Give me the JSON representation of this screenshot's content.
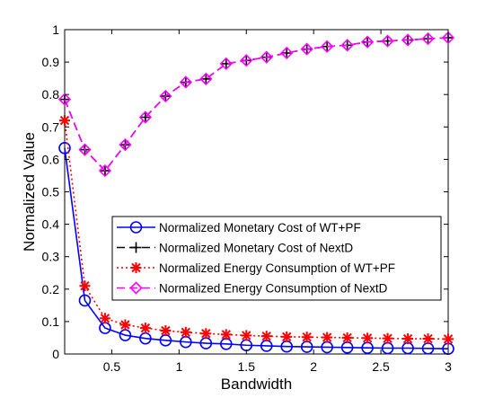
{
  "chart_data": {
    "type": "line",
    "xlabel": "Bandwidth",
    "ylabel": "Normalized Value",
    "xlim": [
      0.15,
      3
    ],
    "ylim": [
      0,
      1
    ],
    "xticks": [
      0.5,
      1,
      1.5,
      2,
      2.5,
      3
    ],
    "xtick_labels": [
      "0.5",
      "1",
      "1.5",
      "2",
      "2.5",
      "3"
    ],
    "yticks": [
      0,
      0.1,
      0.2,
      0.3,
      0.4,
      0.5,
      0.6,
      0.7,
      0.8,
      0.9,
      1
    ],
    "ytick_labels": [
      "0",
      "0.1",
      "0.2",
      "0.3",
      "0.4",
      "0.5",
      "0.6",
      "0.7",
      "0.8",
      "0.9",
      "1"
    ],
    "grid": false,
    "legend_position": "center-right",
    "x": [
      0.15,
      0.3,
      0.45,
      0.6,
      0.75,
      0.9,
      1.05,
      1.2,
      1.35,
      1.5,
      1.65,
      1.8,
      1.95,
      2.1,
      2.25,
      2.4,
      2.55,
      2.7,
      2.85,
      3.0
    ],
    "series": [
      {
        "name": "Normalized Monetary Cost of WT+PF",
        "color": "#0000ff",
        "line": "solid",
        "marker": "circle",
        "values": [
          0.635,
          0.165,
          0.08,
          0.058,
          0.048,
          0.042,
          0.037,
          0.033,
          0.031,
          0.027,
          0.025,
          0.023,
          0.022,
          0.021,
          0.02,
          0.019,
          0.018,
          0.018,
          0.017,
          0.016
        ]
      },
      {
        "name": "Normalized Monetary Cost of NextD",
        "color": "#000000",
        "line": "dashed",
        "marker": "plus",
        "values": [
          0.785,
          0.63,
          0.565,
          0.645,
          0.73,
          0.795,
          0.838,
          0.848,
          0.895,
          0.905,
          0.915,
          0.928,
          0.94,
          0.948,
          0.952,
          0.962,
          0.965,
          0.968,
          0.972,
          0.975
        ]
      },
      {
        "name": "Normalized Energy Consumption of WT+PF",
        "color": "#ff0000",
        "line": "dotted",
        "marker": "star",
        "values": [
          0.72,
          0.21,
          0.11,
          0.09,
          0.08,
          0.072,
          0.067,
          0.063,
          0.06,
          0.057,
          0.055,
          0.053,
          0.052,
          0.051,
          0.05,
          0.049,
          0.048,
          0.047,
          0.047,
          0.046
        ]
      },
      {
        "name": "Normalized Energy Consumption of NextD",
        "color": "#ff00ff",
        "line": "dashed",
        "marker": "diamond",
        "values": [
          0.785,
          0.63,
          0.565,
          0.645,
          0.73,
          0.795,
          0.838,
          0.848,
          0.895,
          0.905,
          0.915,
          0.928,
          0.94,
          0.948,
          0.952,
          0.962,
          0.965,
          0.968,
          0.972,
          0.975
        ]
      }
    ]
  }
}
